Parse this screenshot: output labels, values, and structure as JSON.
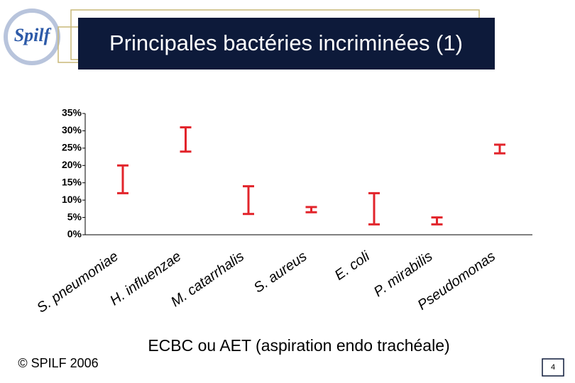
{
  "logo": "Spilf",
  "title": "Principales bactéries incriminées (1)",
  "footer": "© SPILF 2006",
  "page_number": "4",
  "chart_data": {
    "type": "range",
    "x_label": "ECBC ou AET (aspiration endo trachéale)",
    "categories": [
      "S. pneumoniae",
      "H. influenzae",
      "M. catarrhalis",
      "S. aureus",
      "E. coli",
      "P. mirabilis",
      "Pseudomonas"
    ],
    "low": [
      12,
      24,
      6,
      6.5,
      3,
      3,
      23.5
    ],
    "high": [
      20,
      31,
      14,
      8,
      12,
      5,
      26
    ],
    "color": "#e2242b",
    "ylim": [
      0,
      35
    ],
    "yticks": [
      {
        "value": 0,
        "label": "0%"
      },
      {
        "value": 5,
        "label": "5%"
      },
      {
        "value": 10,
        "label": "10%"
      },
      {
        "value": 15,
        "label": "15%"
      },
      {
        "value": 20,
        "label": "20%"
      },
      {
        "value": 25,
        "label": "25%"
      },
      {
        "value": 30,
        "label": "30%"
      },
      {
        "value": 35,
        "label": "35%"
      }
    ]
  }
}
